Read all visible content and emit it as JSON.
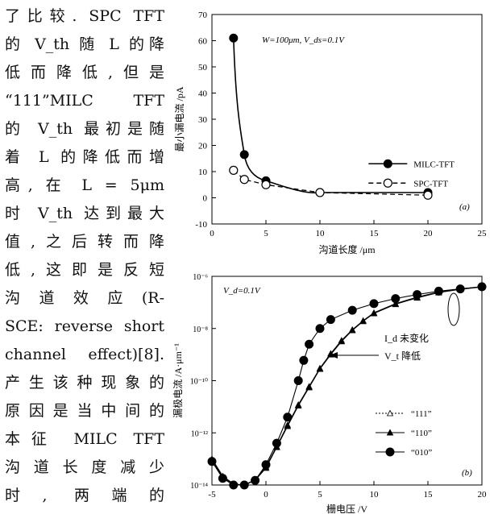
{
  "body_text_lines": [
    "了比较. SPC TFT",
    "的 V_th 随 L 的降",
    "低而降低,但是",
    "“111”MILC TFT",
    "的 V_th 最初是随",
    "着 L 的降低而增",
    "高, 在 L = 5μm",
    "时 V_th 达到最大",
    "值,之后转而降",
    "低,这即是反短",
    "沟道效应(R-",
    "SCE: reverse short",
    "channel effect)[8].",
    "产生该种现象的",
    "原因是当中间的",
    "本征 MILC TFT",
    "沟道长度减少",
    "时, 两端的"
  ],
  "chart_data": [
    {
      "type": "line",
      "panel_label": "(a)",
      "annotation": "W=100μm, V_ds=0.1V",
      "xlabel": "沟道长度 /μm",
      "ylabel": "最小漏电流 /pA",
      "xlim": [
        0,
        25
      ],
      "ylim": [
        -10,
        70
      ],
      "xticks": [
        "0",
        "5",
        "10",
        "15",
        "20",
        "25"
      ],
      "yticks": [
        "-10",
        "0",
        "10",
        "20",
        "30",
        "40",
        "50",
        "60",
        "70"
      ],
      "legend_position": "right",
      "series": [
        {
          "name": "MILC-TFT",
          "marker": "filled-circle",
          "line": "solid",
          "x": [
            2,
            3,
            5,
            10,
            20
          ],
          "y": [
            61,
            16.5,
            6.5,
            2,
            2
          ]
        },
        {
          "name": "SPC-TFT",
          "marker": "open-circle",
          "line": "dashed",
          "x": [
            2,
            3,
            5,
            10,
            20
          ],
          "y": [
            10.5,
            7,
            5,
            2,
            1
          ]
        }
      ]
    },
    {
      "type": "line",
      "panel_label": "(b)",
      "annotation": "V_d=0.1V",
      "annotation_id": "I_d 未变化",
      "annotation_vt": "V_t 降低",
      "xlabel": "栅电压 /V",
      "ylabel": "漏极电流 /A·μm⁻¹",
      "xlim": [
        -5,
        20
      ],
      "ylog_range": [
        -14,
        -6
      ],
      "xticks": [
        "-5",
        "0",
        "5",
        "10",
        "15",
        "20"
      ],
      "yticks": [
        "10⁻⁶",
        "10⁻⁸",
        "10⁻¹⁰",
        "10⁻¹²",
        "10⁻¹⁴"
      ],
      "legend_position": "lower-right",
      "series": [
        {
          "name": "“111”",
          "marker": "open-triangle",
          "x": [
            -5,
            -4,
            -3,
            -2,
            -1,
            0,
            1,
            2,
            3,
            4,
            5,
            6,
            7,
            8,
            9,
            10,
            12,
            14,
            16,
            18,
            20
          ],
          "y": [
            1e-13,
            2.2e-14,
            1.1e-14,
            1e-14,
            1.6e-14,
            5e-14,
            3e-13,
            2e-12,
            1.2e-11,
            6e-11,
            3e-10,
            1.1e-09,
            3.5e-09,
            9e-09,
            2e-08,
            4e-08,
            9e-08,
            1.6e-07,
            2.5e-07,
            3.3e-07,
            4e-07
          ]
        },
        {
          "name": "“110”",
          "marker": "filled-triangle",
          "x": [
            -5,
            -4,
            -3,
            -2,
            -1,
            0,
            1,
            2,
            3,
            4,
            5,
            6,
            7,
            8,
            9,
            10,
            12,
            14,
            16,
            18,
            20
          ],
          "y": [
            9e-14,
            2e-14,
            1e-14,
            1e-14,
            1.5e-14,
            4.5e-14,
            2.8e-13,
            1.8e-12,
            1.1e-11,
            5.5e-11,
            2.8e-10,
            1e-09,
            3.2e-09,
            8.5e-09,
            1.9e-08,
            3.8e-08,
            8.5e-08,
            1.5e-07,
            2.4e-07,
            3.2e-07,
            3.9e-07
          ]
        },
        {
          "name": "“010”",
          "marker": "filled-circle",
          "x": [
            -5,
            -4,
            -3,
            -2,
            -1,
            0,
            1,
            2,
            3,
            3.5,
            4,
            5,
            6,
            8,
            10,
            12,
            14,
            16,
            18,
            20
          ],
          "y": [
            8e-14,
            1.8e-14,
            1e-14,
            1e-14,
            1.5e-14,
            6e-14,
            4e-13,
            4e-12,
            1e-10,
            6e-10,
            2.5e-09,
            1e-08,
            2.2e-08,
            5e-08,
            9e-08,
            1.4e-07,
            2e-07,
            2.7e-07,
            3.3e-07,
            4e-07
          ]
        }
      ]
    }
  ]
}
